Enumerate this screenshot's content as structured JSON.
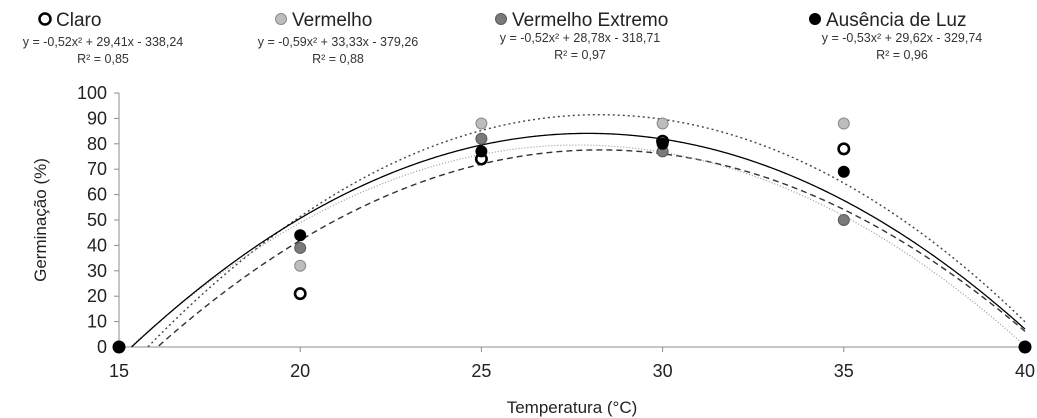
{
  "chart_data": {
    "type": "scatter",
    "xlabel": "Temperatura (°C)",
    "ylabel": "Germinação (%)",
    "xlim": [
      15,
      40
    ],
    "ylim": [
      0,
      100
    ],
    "xticks": [
      "15",
      "20",
      "25",
      "30",
      "35",
      "40"
    ],
    "yticks": [
      "0",
      "10",
      "20",
      "30",
      "40",
      "50",
      "60",
      "70",
      "80",
      "90",
      "100"
    ],
    "grid": false,
    "legend_position": "top",
    "series": [
      {
        "name": "Claro",
        "marker_fill": "#ffffff",
        "marker_stroke": "#000000",
        "line_color": "#333333",
        "line_style": "dashed",
        "equation": "y = -0,52x² + 29,41x - 338,24",
        "r2": "R² = 0,85",
        "coef": [
          -0.52,
          29.41,
          -338.24
        ],
        "points": [
          [
            15,
            0
          ],
          [
            20,
            21
          ],
          [
            25,
            74
          ],
          [
            30,
            81
          ],
          [
            35,
            78
          ],
          [
            40,
            0
          ]
        ]
      },
      {
        "name": "Vermelho",
        "marker_fill": "#bdbdbd",
        "marker_stroke": "#8a8a8a",
        "line_color": "#444444",
        "line_style": "dotted",
        "equation": "y = -0,59x² + 33,33x - 379,26",
        "r2": "R² = 0,88",
        "coef": [
          -0.59,
          33.33,
          -379.26
        ],
        "points": [
          [
            15,
            0
          ],
          [
            20,
            32
          ],
          [
            25,
            88
          ],
          [
            30,
            88
          ],
          [
            35,
            88
          ],
          [
            40,
            0
          ]
        ]
      },
      {
        "name": "Vermelho Extremo",
        "marker_fill": "#7a7a7a",
        "marker_stroke": "#5a5a5a",
        "line_color": "#999999",
        "line_style": "dotted-fine",
        "equation": "y = -0,52x² + 28,78x - 318,71",
        "r2": "R² = 0,97",
        "coef": [
          -0.52,
          28.78,
          -318.71
        ],
        "points": [
          [
            15,
            0
          ],
          [
            20,
            39
          ],
          [
            25,
            82
          ],
          [
            30,
            77
          ],
          [
            35,
            50
          ],
          [
            40,
            0
          ]
        ]
      },
      {
        "name": "Ausência de Luz",
        "marker_fill": "#000000",
        "marker_stroke": "#000000",
        "line_color": "#000000",
        "line_style": "solid",
        "equation": "y = -0,53x² + 29,62x - 329,74",
        "r2": "R² = 0,96",
        "coef": [
          -0.53,
          29.62,
          -329.74
        ],
        "points": [
          [
            15,
            0
          ],
          [
            20,
            44
          ],
          [
            25,
            77
          ],
          [
            30,
            80
          ],
          [
            35,
            69
          ],
          [
            40,
            0
          ]
        ]
      }
    ]
  }
}
